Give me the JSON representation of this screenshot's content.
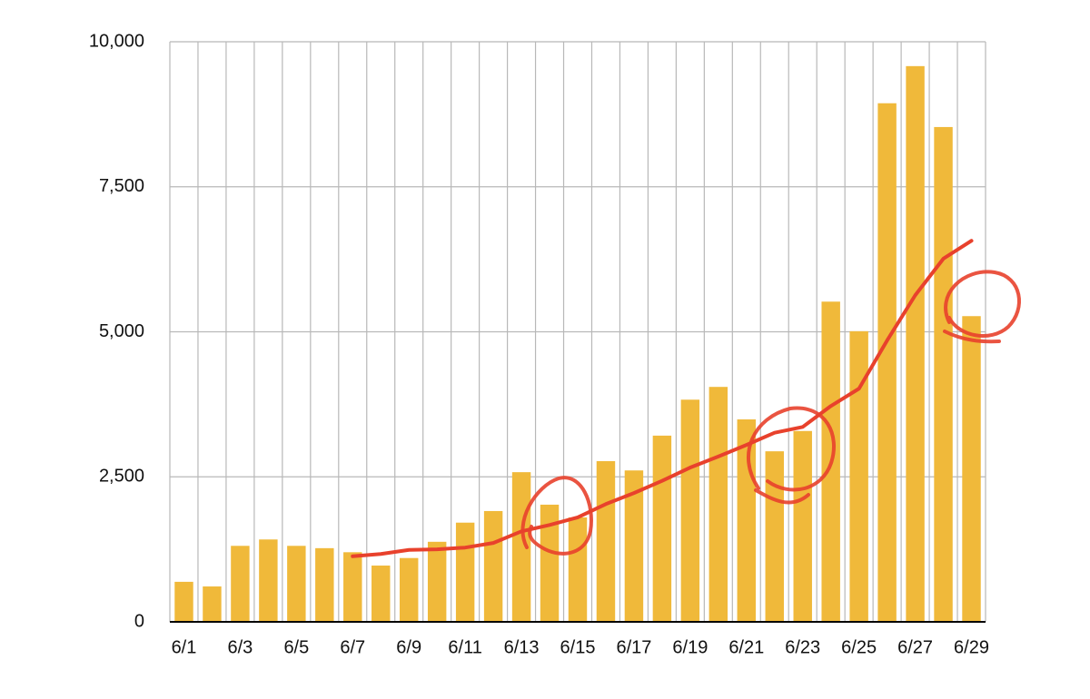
{
  "chart_data": {
    "type": "bar",
    "categories": [
      "6/1",
      null,
      "6/3",
      null,
      "6/5",
      null,
      "6/7",
      null,
      "6/9",
      null,
      "6/11",
      null,
      "6/13",
      null,
      "6/15",
      null,
      "6/17",
      null,
      "6/19",
      null,
      "6/21",
      null,
      "6/23",
      null,
      "6/25",
      null,
      "6/27",
      null,
      "6/29"
    ],
    "series": [
      {
        "type": "bar",
        "color": "#f0b93a",
        "values": [
          690,
          610,
          1310,
          1420,
          1310,
          1270,
          1200,
          970,
          1100,
          1380,
          1710,
          1910,
          2580,
          2020,
          1800,
          2770,
          2610,
          3210,
          3830,
          4050,
          3490,
          2940,
          3290,
          5520,
          5010,
          8940,
          9580,
          8530,
          5270
        ]
      },
      {
        "type": "line",
        "color": "#e8412c",
        "values": [
          null,
          null,
          null,
          null,
          null,
          null,
          1130,
          1170,
          1240,
          1250,
          1280,
          1360,
          1560,
          1670,
          1800,
          2030,
          2220,
          2430,
          2660,
          2850,
          3050,
          3260,
          3360,
          3720,
          4020,
          4850,
          5630,
          6260,
          6570
        ]
      }
    ],
    "ylim": [
      0,
      10000
    ],
    "yticks": [
      0,
      {
        "value": 2500,
        "label": "2,500"
      },
      {
        "value": 5000,
        "label": "5,000"
      },
      {
        "value": 7500,
        "label": "7,500"
      },
      {
        "value": 10000,
        "label": "10,000"
      }
    ],
    "grid": true
  }
}
